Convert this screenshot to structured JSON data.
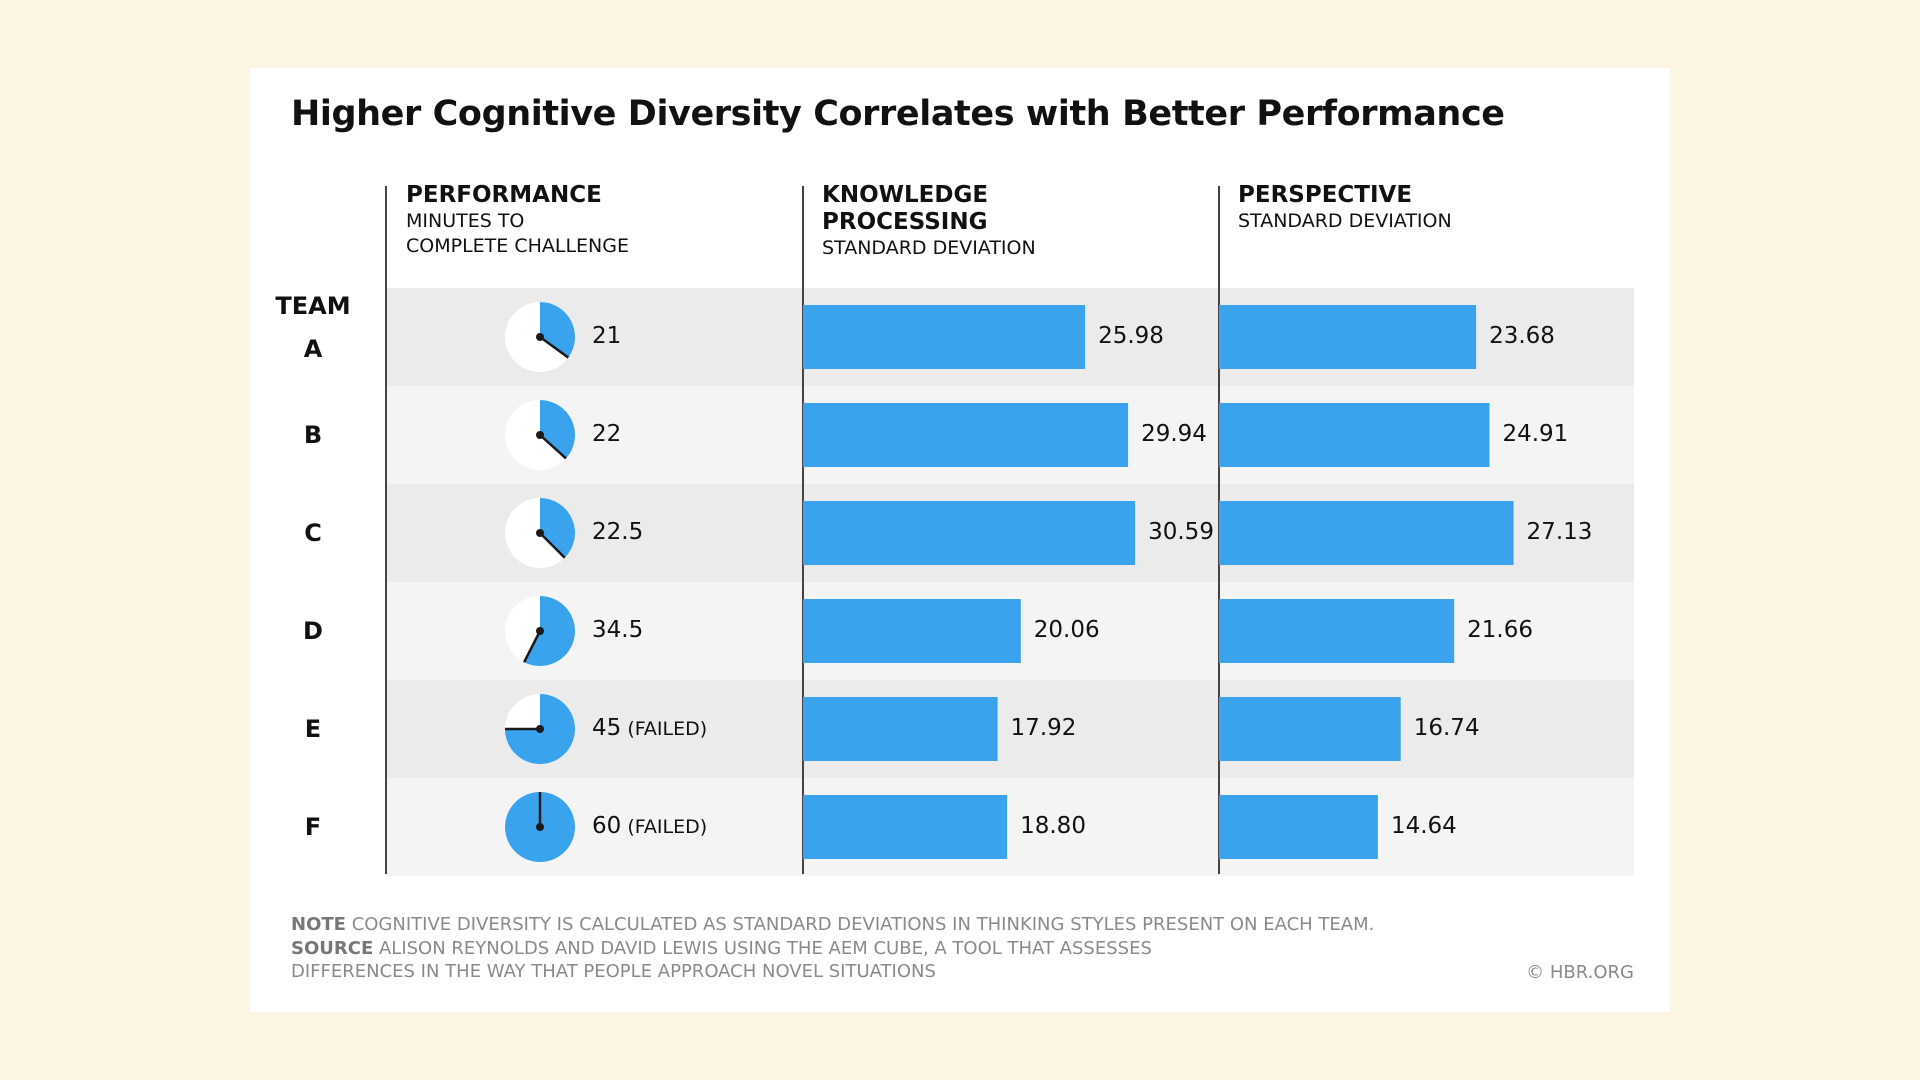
{
  "chart_data": {
    "type": "bar",
    "title": "Higher Cognitive Diversity Correlates with Better Performance",
    "team_header": "TEAM",
    "categories": [
      "A",
      "B",
      "C",
      "D",
      "E",
      "F"
    ],
    "columns": [
      {
        "key": "performance",
        "title": "PERFORMANCE",
        "subtitle_lines": [
          "MINUTES TO",
          "COMPLETE CHALLENGE"
        ],
        "mark": "clock",
        "max": 60,
        "values": [
          21,
          22,
          22.5,
          34.5,
          45,
          60
        ],
        "labels": [
          "21",
          "22",
          "22.5",
          "34.5",
          "45",
          "60"
        ],
        "suffix": [
          "",
          "",
          "",
          "",
          "(FAILED)",
          "(FAILED)"
        ]
      },
      {
        "key": "knowledge_processing",
        "title_lines": [
          "KNOWLEDGE",
          "PROCESSING"
        ],
        "subtitle_lines": [
          "STANDARD DEVIATION"
        ],
        "mark": "bar",
        "values": [
          25.98,
          29.94,
          30.59,
          20.06,
          17.92,
          18.8
        ],
        "labels": [
          "25.98",
          "29.94",
          "30.59",
          "20.06",
          "17.92",
          "18.80"
        ]
      },
      {
        "key": "perspective",
        "title": "PERSPECTIVE",
        "subtitle_lines": [
          "STANDARD DEVIATION"
        ],
        "mark": "bar",
        "values": [
          23.68,
          24.91,
          27.13,
          21.66,
          16.74,
          14.64
        ],
        "labels": [
          "23.68",
          "24.91",
          "27.13",
          "21.66",
          "16.74",
          "14.64"
        ]
      }
    ],
    "colors": {
      "bar": "#3aa3ee",
      "row_dark": "#ebebeb",
      "row_light": "#f4f4f4",
      "clock_hand": "#1a1a1a"
    }
  },
  "footer": {
    "note_label": "NOTE",
    "note_text": "COGNITIVE DIVERSITY IS CALCULATED AS STANDARD DEVIATIONS IN THINKING STYLES PRESENT ON EACH TEAM.",
    "source_label": "SOURCE",
    "source_text": "ALISON REYNOLDS AND DAVID LEWIS USING THE AEM CUBE, A TOOL THAT ASSESSES",
    "source_text_2": "DIFFERENCES IN THE WAY THAT PEOPLE APPROACH NOVEL SITUATIONS",
    "credit": "© HBR.ORG"
  }
}
